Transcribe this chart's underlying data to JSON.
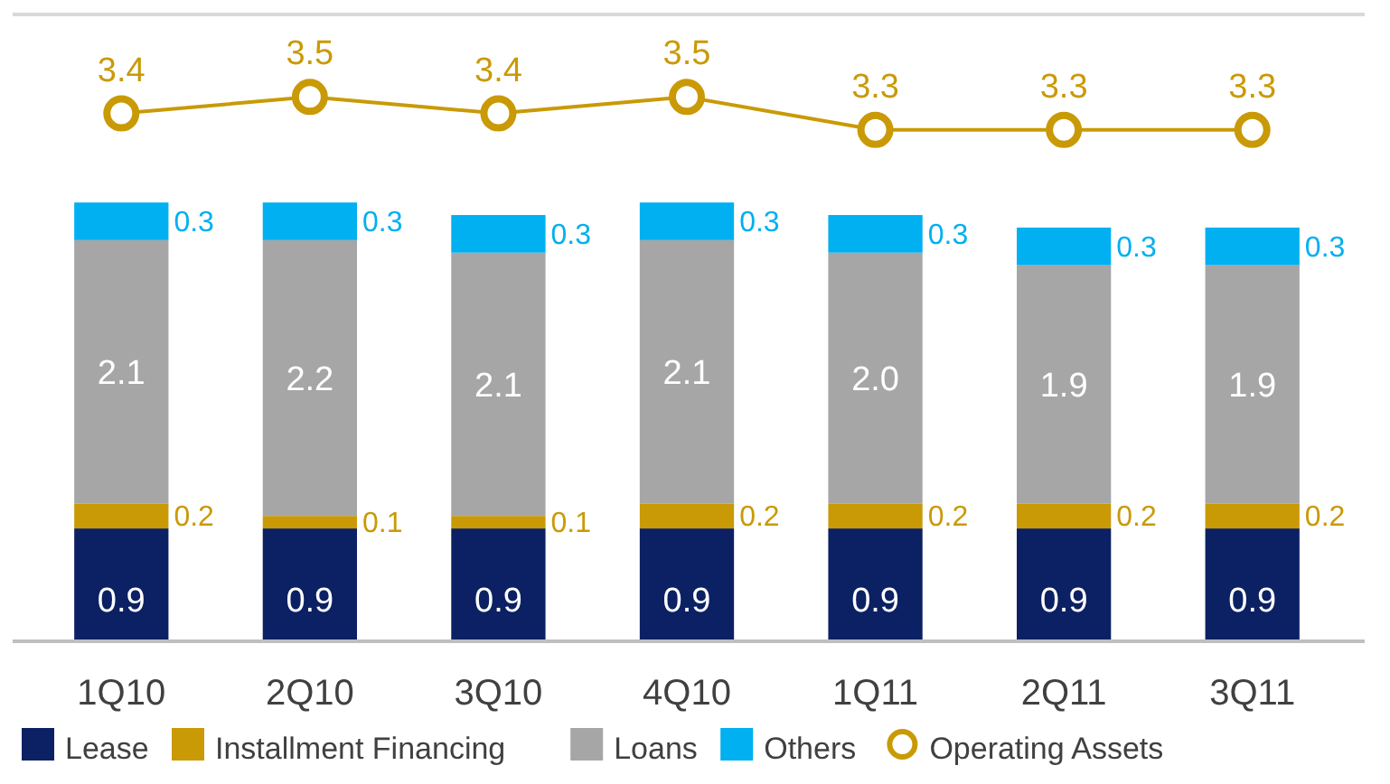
{
  "chart_data": {
    "type": "bar",
    "stacked": true,
    "categories": [
      "1Q10",
      "2Q10",
      "3Q10",
      "4Q10",
      "1Q11",
      "2Q11",
      "3Q11"
    ],
    "ylim": [
      0,
      5
    ],
    "y2lim": [
      0.2,
      4.0
    ],
    "tick_labels": "x",
    "data_labels": true,
    "legend": "bottom",
    "marker": "circle",
    "series": [
      {
        "name": "Lease",
        "color": "#0c2163",
        "values": [
          0.9,
          0.9,
          0.9,
          0.9,
          0.9,
          0.9,
          0.9
        ]
      },
      {
        "name": "Installment Financing",
        "color": "#c99a06",
        "values": [
          0.2,
          0.1,
          0.1,
          0.2,
          0.2,
          0.2,
          0.2
        ]
      },
      {
        "name": "Loans",
        "color": "#a6a6a6",
        "values": [
          2.1,
          2.2,
          2.1,
          2.1,
          2.0,
          1.9,
          1.9
        ],
        "value_labels": [
          "2.1",
          "2.2",
          "2.1",
          "2.1",
          "2.0",
          "1.9",
          "1.9"
        ]
      },
      {
        "name": "Others",
        "color": "#00b0f0",
        "values": [
          0.3,
          0.3,
          0.3,
          0.3,
          0.3,
          0.3,
          0.3
        ]
      },
      {
        "name": "Operating Assets",
        "type": "line",
        "axis": "y2",
        "color": "#c99a06",
        "values": [
          3.4,
          3.5,
          3.4,
          3.5,
          3.3,
          3.3,
          3.3
        ]
      }
    ]
  }
}
